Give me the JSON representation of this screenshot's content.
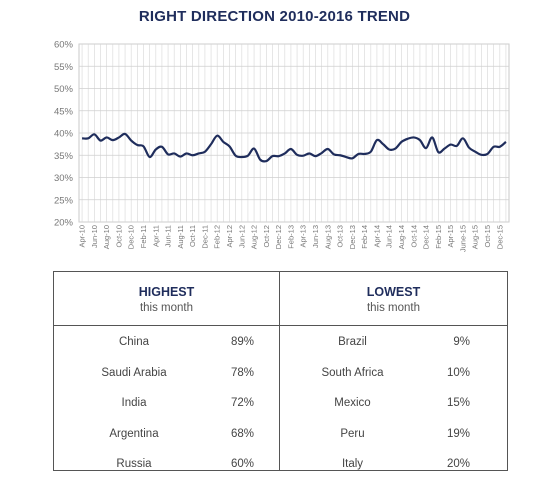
{
  "chart_data": {
    "type": "line",
    "title": "RIGHT DIRECTION 2010-2016 TREND",
    "xlabel": "",
    "ylabel": "",
    "ylim": [
      20,
      60
    ],
    "y_ticks": [
      "60%",
      "55%",
      "50%",
      "45%",
      "40%",
      "35%",
      "30%",
      "25%",
      "20%"
    ],
    "y_tick_values": [
      60,
      55,
      50,
      45,
      40,
      35,
      30,
      25,
      20
    ],
    "grid": true,
    "legend": "none",
    "line_color": "#1f2d5c",
    "x_tick_labels": [
      "Apr-10",
      "Jun-10",
      "Aug-10",
      "Oct-10",
      "Dec-10",
      "Feb-11",
      "Apr-11",
      "Jun-11",
      "Aug-11",
      "Oct-11",
      "Dec-11",
      "Feb-12",
      "Apr-12",
      "Jun-12",
      "Aug-12",
      "Oct-12",
      "Dec-12",
      "Feb-13",
      "Apr-13",
      "Jun-13",
      "Aug-13",
      "Oct-13",
      "Dec-13",
      "Feb-14",
      "Apr-14",
      "Jun-14",
      "Aug-14",
      "Oct-14",
      "Dec-14",
      "Feb-15",
      "Apr-15",
      "June-15",
      "Aug-15",
      "Oct-15",
      "Dec-15"
    ],
    "x": [
      "Apr-10",
      "May-10",
      "Jun-10",
      "Jul-10",
      "Aug-10",
      "Sep-10",
      "Oct-10",
      "Nov-10",
      "Dec-10",
      "Jan-11",
      "Feb-11",
      "Mar-11",
      "Apr-11",
      "May-11",
      "Jun-11",
      "Jul-11",
      "Aug-11",
      "Sep-11",
      "Oct-11",
      "Nov-11",
      "Dec-11",
      "Jan-12",
      "Feb-12",
      "Mar-12",
      "Apr-12",
      "May-12",
      "Jun-12",
      "Jul-12",
      "Aug-12",
      "Sep-12",
      "Oct-12",
      "Nov-12",
      "Dec-12",
      "Jan-13",
      "Feb-13",
      "Mar-13",
      "Apr-13",
      "May-13",
      "Jun-13",
      "Jul-13",
      "Aug-13",
      "Sep-13",
      "Oct-13",
      "Nov-13",
      "Dec-13",
      "Jan-14",
      "Feb-14",
      "Mar-14",
      "Apr-14",
      "May-14",
      "Jun-14",
      "Jul-14",
      "Aug-14",
      "Sep-14",
      "Oct-14",
      "Nov-14",
      "Dec-14",
      "Jan-15",
      "Feb-15",
      "Mar-15",
      "Apr-15",
      "May-15",
      "June-15",
      "Jul-15",
      "Aug-15",
      "Sep-15",
      "Oct-15",
      "Nov-15",
      "Dec-15",
      "Jan-16"
    ],
    "series": [
      {
        "values": [
          38.8,
          38.8,
          39.7,
          38.3,
          39.0,
          38.4,
          39.0,
          39.8,
          38.3,
          37.3,
          37.0,
          34.6,
          36.3,
          36.9,
          35.2,
          35.4,
          34.7,
          35.4,
          35.0,
          35.4,
          35.8,
          37.5,
          39.4,
          38.0,
          37.0,
          34.9,
          34.6,
          34.9,
          36.5,
          34.0,
          33.7,
          34.8,
          34.8,
          35.4,
          36.4,
          35.1,
          34.9,
          35.4,
          34.8,
          35.5,
          36.4,
          35.2,
          35.0,
          34.6,
          34.3,
          35.3,
          35.3,
          35.8,
          38.4,
          37.5,
          36.3,
          36.5,
          38.0,
          38.7,
          39.0,
          38.4,
          36.6,
          39.0,
          35.7,
          36.5,
          37.4,
          37.1,
          38.8,
          36.7,
          35.8,
          35.1,
          35.3,
          36.9,
          36.9,
          38.0
        ]
      }
    ]
  },
  "table": {
    "highest": {
      "heading": "HIGHEST",
      "subheading": "this month",
      "rows": [
        {
          "country": "China",
          "value": "89%"
        },
        {
          "country": "Saudi Arabia",
          "value": "78%"
        },
        {
          "country": "India",
          "value": "72%"
        },
        {
          "country": "Argentina",
          "value": "68%"
        },
        {
          "country": "Russia",
          "value": "60%"
        }
      ]
    },
    "lowest": {
      "heading": "LOWEST",
      "subheading": "this month",
      "rows": [
        {
          "country": "Brazil",
          "value": "9%"
        },
        {
          "country": "South Africa",
          "value": "10%"
        },
        {
          "country": "Mexico",
          "value": "15%"
        },
        {
          "country": "Peru",
          "value": "19%"
        },
        {
          "country": "Italy",
          "value": "20%"
        }
      ]
    }
  }
}
